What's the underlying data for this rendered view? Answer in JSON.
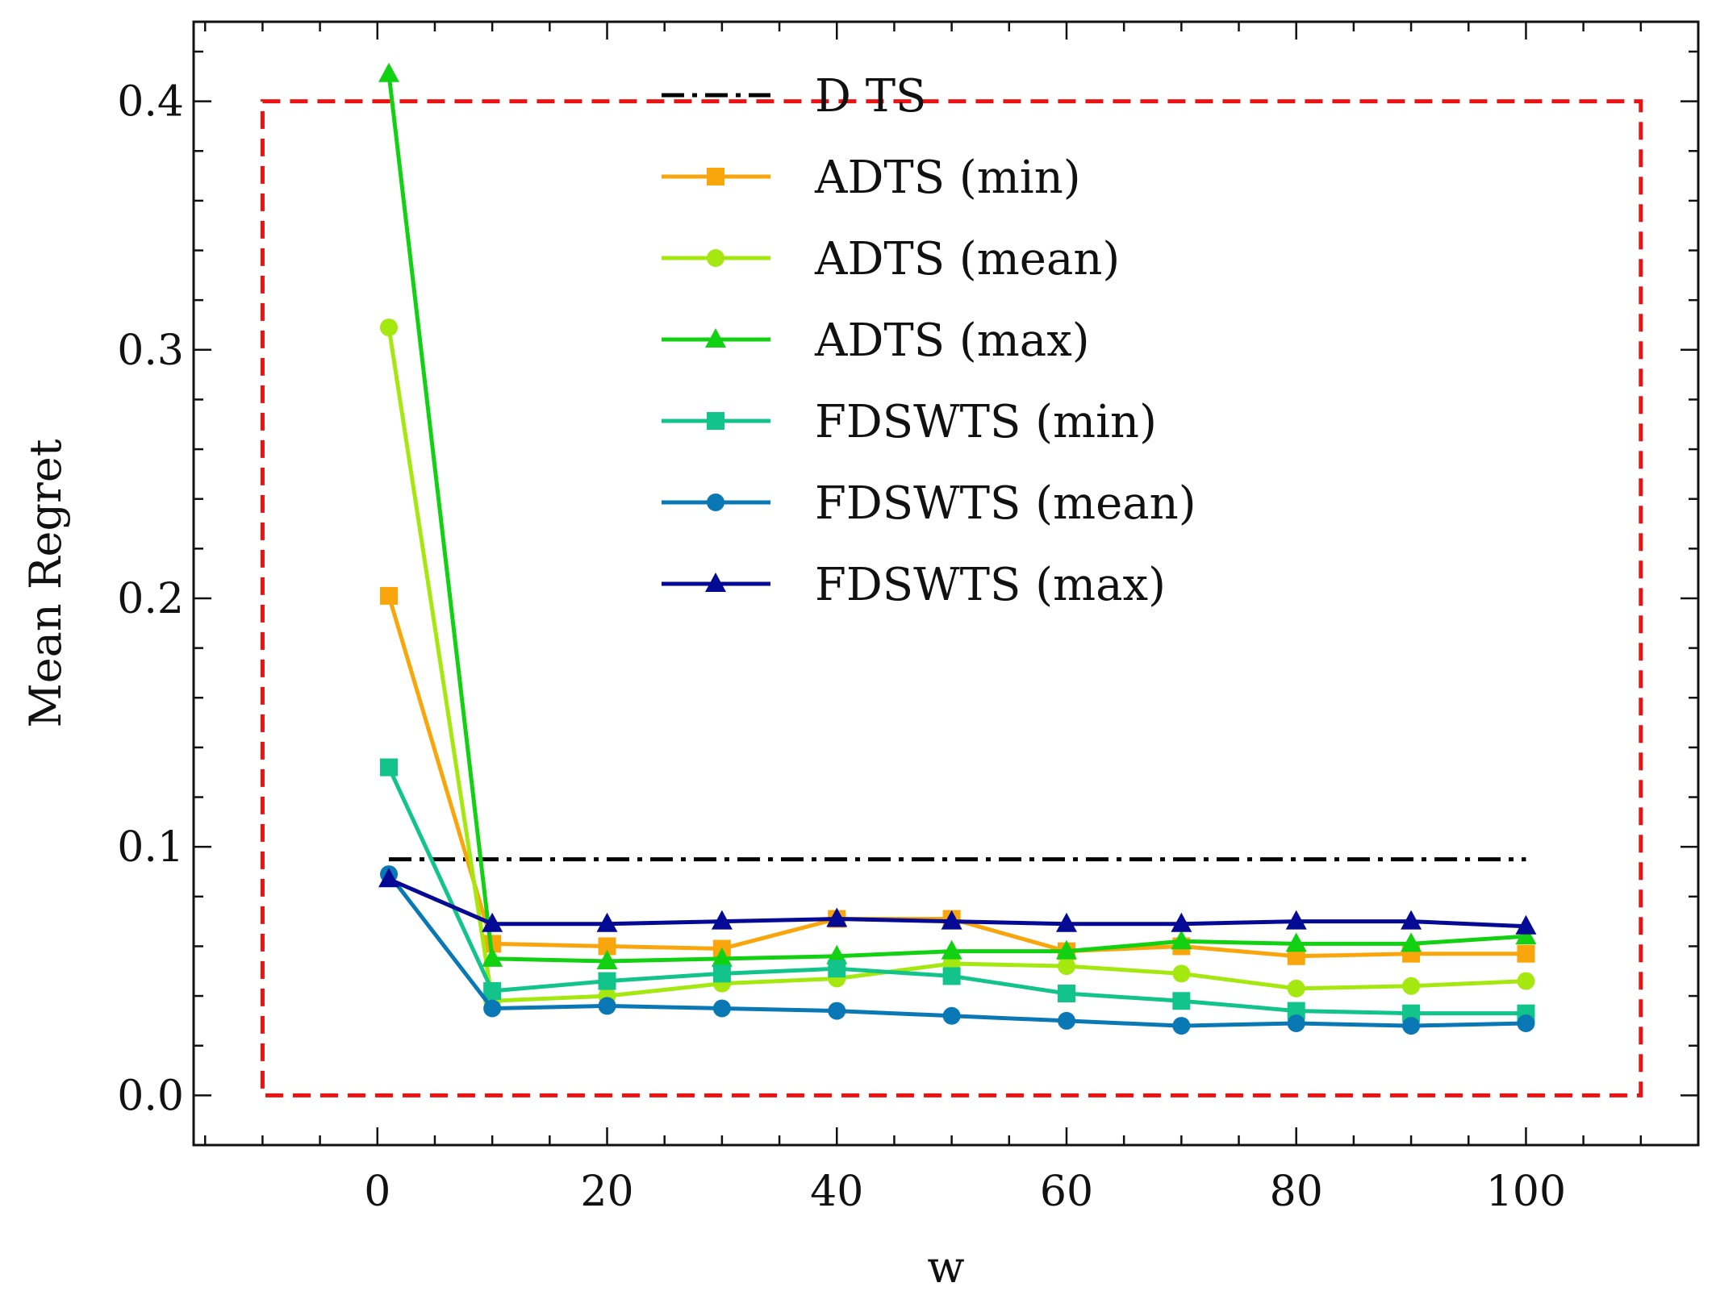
{
  "chart_data": {
    "type": "line",
    "title": "",
    "xlabel": "w",
    "ylabel": "Mean Regret",
    "xlim": [
      -16,
      115
    ],
    "ylim": [
      -0.02,
      0.432
    ],
    "xticks": [
      0,
      20,
      40,
      60,
      80,
      100
    ],
    "xtick_labels": [
      "0",
      "20",
      "40",
      "60",
      "80",
      "100"
    ],
    "yticks": [
      0.0,
      0.1,
      0.2,
      0.3,
      0.4
    ],
    "ytick_labels": [
      "0.0",
      "0.1",
      "0.2",
      "0.3",
      "0.4"
    ],
    "grid": false,
    "legend_position": "top-center",
    "region_box": {
      "x": [
        -10,
        110
      ],
      "y": [
        0.0,
        0.4
      ],
      "color": "#ee1111",
      "style": "dashed"
    },
    "x": [
      1,
      10,
      20,
      30,
      40,
      50,
      60,
      70,
      80,
      90,
      100
    ],
    "series": [
      {
        "name": "D TS",
        "color": "#000000",
        "style": "dashdot",
        "marker": "none",
        "values": [
          0.095,
          0.095,
          0.095,
          0.095,
          0.095,
          0.095,
          0.095,
          0.095,
          0.095,
          0.095,
          0.095
        ]
      },
      {
        "name": "ADTS (min)",
        "color": "#f9a60c",
        "style": "solid",
        "marker": "square",
        "values": [
          0.201,
          0.061,
          0.06,
          0.059,
          0.071,
          0.071,
          0.058,
          0.06,
          0.056,
          0.057,
          0.057
        ]
      },
      {
        "name": "ADTS (mean)",
        "color": "#a5e80f",
        "style": "solid",
        "marker": "circle",
        "values": [
          0.309,
          0.038,
          0.04,
          0.045,
          0.047,
          0.053,
          0.052,
          0.049,
          0.043,
          0.044,
          0.046
        ]
      },
      {
        "name": "ADTS (max)",
        "color": "#12d112",
        "style": "solid",
        "marker": "triangle",
        "values": [
          0.411,
          0.055,
          0.054,
          0.055,
          0.056,
          0.058,
          0.058,
          0.062,
          0.061,
          0.061,
          0.064
        ]
      },
      {
        "name": "FDSWTS (min)",
        "color": "#12c48a",
        "style": "solid",
        "marker": "square",
        "values": [
          0.132,
          0.042,
          0.046,
          0.049,
          0.051,
          0.048,
          0.041,
          0.038,
          0.034,
          0.033,
          0.033
        ]
      },
      {
        "name": "FDSWTS (mean)",
        "color": "#0a78b4",
        "style": "solid",
        "marker": "circle",
        "values": [
          0.089,
          0.035,
          0.036,
          0.035,
          0.034,
          0.032,
          0.03,
          0.028,
          0.029,
          0.028,
          0.029
        ]
      },
      {
        "name": "FDSWTS (max)",
        "color": "#050a94",
        "style": "solid",
        "marker": "triangle",
        "values": [
          0.087,
          0.069,
          0.069,
          0.07,
          0.071,
          0.07,
          0.069,
          0.069,
          0.07,
          0.07,
          0.068
        ]
      }
    ]
  }
}
